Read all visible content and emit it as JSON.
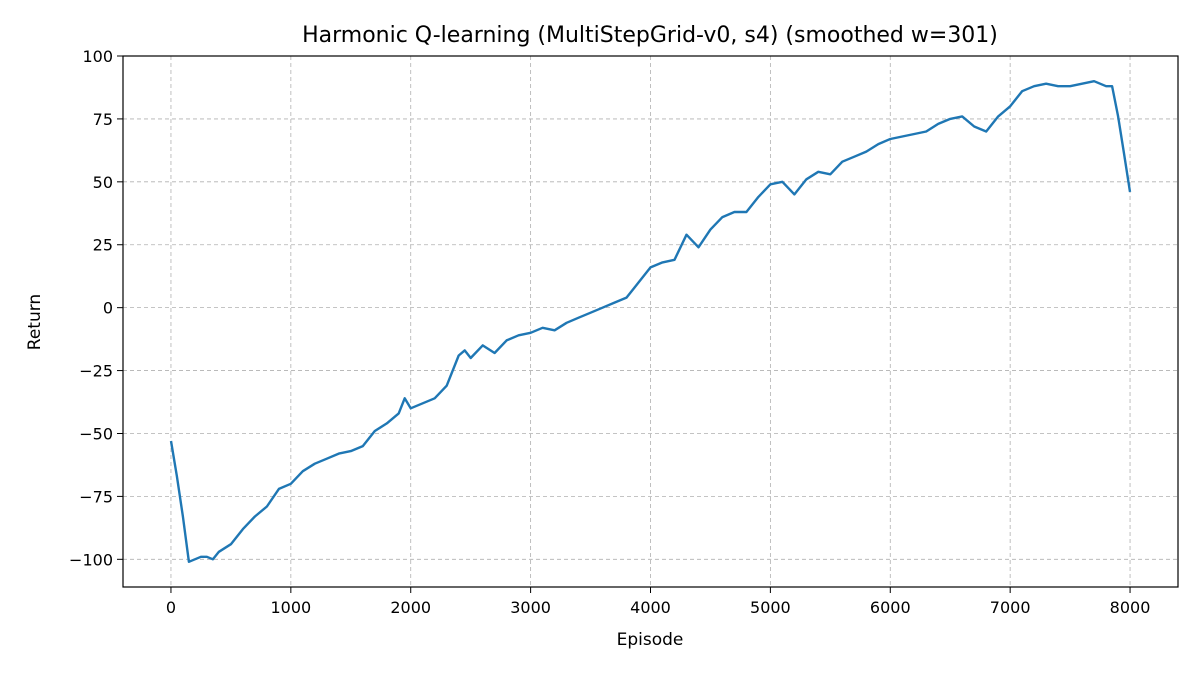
{
  "chart_data": {
    "type": "line",
    "title": "Harmonic Q-learning (MultiStepGrid-v0, s4) (smoothed w=301)",
    "xlabel": "Episode",
    "ylabel": "Return",
    "xlim": [
      -400,
      8400
    ],
    "ylim": [
      -111,
      100
    ],
    "xticks": [
      0,
      1000,
      2000,
      3000,
      4000,
      5000,
      6000,
      7000,
      8000
    ],
    "xtick_labels": [
      "0",
      "1000",
      "2000",
      "3000",
      "4000",
      "5000",
      "6000",
      "7000",
      "8000"
    ],
    "yticks": [
      -100,
      -75,
      -50,
      -25,
      0,
      25,
      50,
      75,
      100
    ],
    "ytick_labels": [
      "−100",
      "−75",
      "−50",
      "−25",
      "0",
      "25",
      "50",
      "75",
      "100"
    ],
    "grid": true,
    "color": "#1f77b4",
    "series": [
      {
        "x": [
          0,
          50,
          100,
          150,
          200,
          250,
          300,
          350,
          400,
          500,
          600,
          700,
          800,
          900,
          1000,
          1100,
          1200,
          1300,
          1400,
          1500,
          1600,
          1700,
          1800,
          1900,
          1950,
          2000,
          2100,
          2200,
          2300,
          2400,
          2450,
          2500,
          2600,
          2700,
          2800,
          2900,
          3000,
          3100,
          3200,
          3300,
          3400,
          3500,
          3600,
          3700,
          3800,
          3900,
          4000,
          4100,
          4200,
          4300,
          4400,
          4500,
          4600,
          4700,
          4800,
          4900,
          5000,
          5100,
          5200,
          5300,
          5400,
          5500,
          5600,
          5700,
          5800,
          5900,
          6000,
          6100,
          6200,
          6300,
          6400,
          6500,
          6600,
          6700,
          6800,
          6900,
          7000,
          7100,
          7200,
          7300,
          7400,
          7500,
          7600,
          7700,
          7800,
          7850,
          7900,
          7950,
          8000
        ],
        "y": [
          -53,
          -67,
          -83,
          -101,
          -100,
          -99,
          -99,
          -100,
          -97,
          -94,
          -88,
          -83,
          -79,
          -72,
          -70,
          -65,
          -62,
          -60,
          -58,
          -57,
          -55,
          -49,
          -46,
          -42,
          -36,
          -40,
          -38,
          -36,
          -31,
          -19,
          -17,
          -20,
          -15,
          -18,
          -13,
          -11,
          -10,
          -8,
          -9,
          -6,
          -4,
          -2,
          0,
          2,
          4,
          10,
          16,
          18,
          19,
          29,
          24,
          31,
          36,
          38,
          38,
          44,
          49,
          50,
          45,
          51,
          54,
          53,
          58,
          60,
          62,
          65,
          67,
          68,
          69,
          70,
          73,
          75,
          76,
          72,
          70,
          76,
          80,
          86,
          88,
          89,
          88,
          88,
          89,
          90,
          88,
          88,
          76,
          61,
          46
        ]
      }
    ]
  }
}
